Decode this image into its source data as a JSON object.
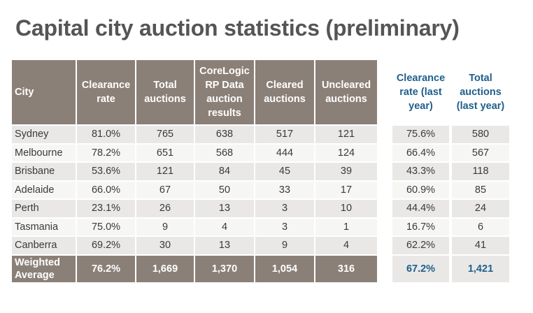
{
  "title": "Capital city auction statistics (preliminary)",
  "headers": {
    "city": "City",
    "clearance_rate": "Clearance rate",
    "total_auctions": "Total auctions",
    "corelogic": "CoreLogic RP Data auction results",
    "cleared": "Cleared auctions",
    "uncleared": "Uncleared auctions",
    "clearance_last_year": "Clearance rate (last year)",
    "total_last_year": "Total auctions (last year)"
  },
  "rows": [
    {
      "city": "Sydney",
      "clearance_rate": "81.0%",
      "total_auctions": "765",
      "corelogic": "638",
      "cleared": "517",
      "uncleared": "121",
      "clearance_last_year": "75.6%",
      "total_last_year": "580"
    },
    {
      "city": "Melbourne",
      "clearance_rate": "78.2%",
      "total_auctions": "651",
      "corelogic": "568",
      "cleared": "444",
      "uncleared": "124",
      "clearance_last_year": "66.4%",
      "total_last_year": "567"
    },
    {
      "city": "Brisbane",
      "clearance_rate": "53.6%",
      "total_auctions": "121",
      "corelogic": "84",
      "cleared": "45",
      "uncleared": "39",
      "clearance_last_year": "43.3%",
      "total_last_year": "118"
    },
    {
      "city": "Adelaide",
      "clearance_rate": "66.0%",
      "total_auctions": "67",
      "corelogic": "50",
      "cleared": "33",
      "uncleared": "17",
      "clearance_last_year": "60.9%",
      "total_last_year": "85"
    },
    {
      "city": "Perth",
      "clearance_rate": "23.1%",
      "total_auctions": "26",
      "corelogic": "13",
      "cleared": "3",
      "uncleared": "10",
      "clearance_last_year": "44.4%",
      "total_last_year": "24"
    },
    {
      "city": "Tasmania",
      "clearance_rate": "75.0%",
      "total_auctions": "9",
      "corelogic": "4",
      "cleared": "3",
      "uncleared": "1",
      "clearance_last_year": "16.7%",
      "total_last_year": "6"
    },
    {
      "city": "Canberra",
      "clearance_rate": "69.2%",
      "total_auctions": "30",
      "corelogic": "13",
      "cleared": "9",
      "uncleared": "4",
      "clearance_last_year": "62.2%",
      "total_last_year": "41"
    }
  ],
  "total": {
    "city": "Weighted Average",
    "clearance_rate": "76.2%",
    "total_auctions": "1,669",
    "corelogic": "1,370",
    "cleared": "1,054",
    "uncleared": "316",
    "clearance_last_year": "67.2%",
    "total_last_year": "1,421"
  },
  "colors": {
    "header_bg": "#8b8078",
    "row_odd": "#e9e8e6",
    "row_even": "#f6f6f5",
    "title": "#555555",
    "last_year_accent": "#1f5f8b"
  }
}
